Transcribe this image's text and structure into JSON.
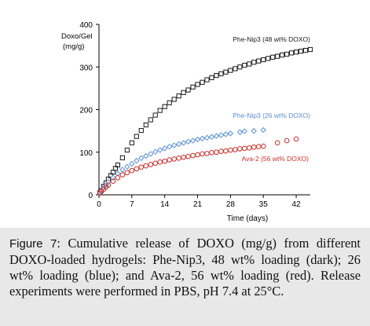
{
  "chart_data": {
    "type": "scatter",
    "title": "",
    "xlabel": "Time (days)",
    "ylabel": "Doxo/Gel (mg/g)",
    "ylabel_lines": [
      "Doxo/Gel",
      "(mg/g)"
    ],
    "xlim": [
      0,
      45
    ],
    "ylim": [
      0,
      400
    ],
    "x_ticks": [
      0,
      7,
      14,
      21,
      28,
      35,
      42
    ],
    "y_ticks": [
      0,
      100,
      200,
      300,
      400
    ],
    "grid": false,
    "series": [
      {
        "name": "Phe-Nip3 (48 wt% DOXO)",
        "color": "#1a1a1a",
        "marker": "square",
        "x": [
          0.2,
          0.5,
          1,
          1.5,
          2,
          2.5,
          3,
          3.5,
          4,
          5,
          6,
          7,
          8,
          9,
          10,
          11,
          12,
          13,
          14,
          15,
          16,
          17,
          18,
          19,
          20,
          21,
          22,
          23,
          24,
          25,
          26,
          27,
          28,
          29,
          30,
          31,
          32,
          33,
          34,
          35,
          36,
          37,
          38,
          39,
          40,
          41,
          42,
          43,
          44,
          45
        ],
        "values": [
          5,
          10,
          20,
          28,
          37,
          45,
          53,
          62,
          70,
          87,
          105,
          122,
          137,
          151,
          164,
          176,
          187,
          198,
          207,
          216,
          224,
          232,
          240,
          246,
          253,
          259,
          264,
          270,
          275,
          280,
          284,
          288,
          292,
          296,
          300,
          304,
          307,
          311,
          314,
          317,
          320,
          323,
          325,
          328,
          330,
          333,
          335,
          337,
          339,
          341
        ]
      },
      {
        "name": "Phe-Nip3 (26 wt% DOXO)",
        "color": "#5b8fd4",
        "marker": "diamond",
        "x": [
          0.2,
          0.5,
          1,
          1.5,
          2,
          3,
          4,
          5,
          6,
          7,
          8,
          9,
          10,
          11,
          12,
          13,
          14,
          15,
          16,
          17,
          18,
          19,
          20,
          21,
          22,
          23,
          24,
          25,
          26,
          27,
          28,
          30,
          31,
          33,
          35
        ],
        "values": [
          5,
          10,
          17,
          23,
          30,
          40,
          50,
          59,
          66,
          73,
          80,
          86,
          91,
          96,
          101,
          105,
          109,
          113,
          116,
          119,
          122,
          125,
          127,
          130,
          132,
          134,
          136,
          138,
          140,
          142,
          144,
          147,
          149,
          150,
          152
        ]
      },
      {
        "name": "Ava-2 (56 wt% DOXO)",
        "color": "#c9302c",
        "marker": "circle",
        "x": [
          0.2,
          0.5,
          1,
          1.5,
          2,
          3,
          4,
          5,
          6,
          7,
          8,
          9,
          10,
          11,
          12,
          13,
          14,
          15,
          16,
          17,
          18,
          19,
          20,
          21,
          22,
          23,
          24,
          25,
          26,
          27,
          28,
          29,
          30,
          31,
          32,
          33,
          34,
          35,
          38,
          40,
          42
        ],
        "values": [
          4,
          8,
          13,
          18,
          23,
          32,
          40,
          47,
          52,
          57,
          61,
          65,
          68,
          71,
          74,
          77,
          79,
          82,
          84,
          86,
          88,
          90,
          92,
          94,
          96,
          97,
          99,
          100,
          102,
          103,
          105,
          106,
          108,
          109,
          110,
          112,
          113,
          114,
          122,
          127,
          131
        ]
      }
    ]
  },
  "caption": {
    "label": "Figure 7",
    "text": ": Cumulative release of DOXO (mg/g) from different DOXO-loaded hydrogels: Phe-Nip3, 48 wt% loading (dark); 26 wt% loading (blue); and Ava-2, 56 wt% loading (red). Release experiments were performed in PBS, pH 7.4 at 25°C."
  }
}
